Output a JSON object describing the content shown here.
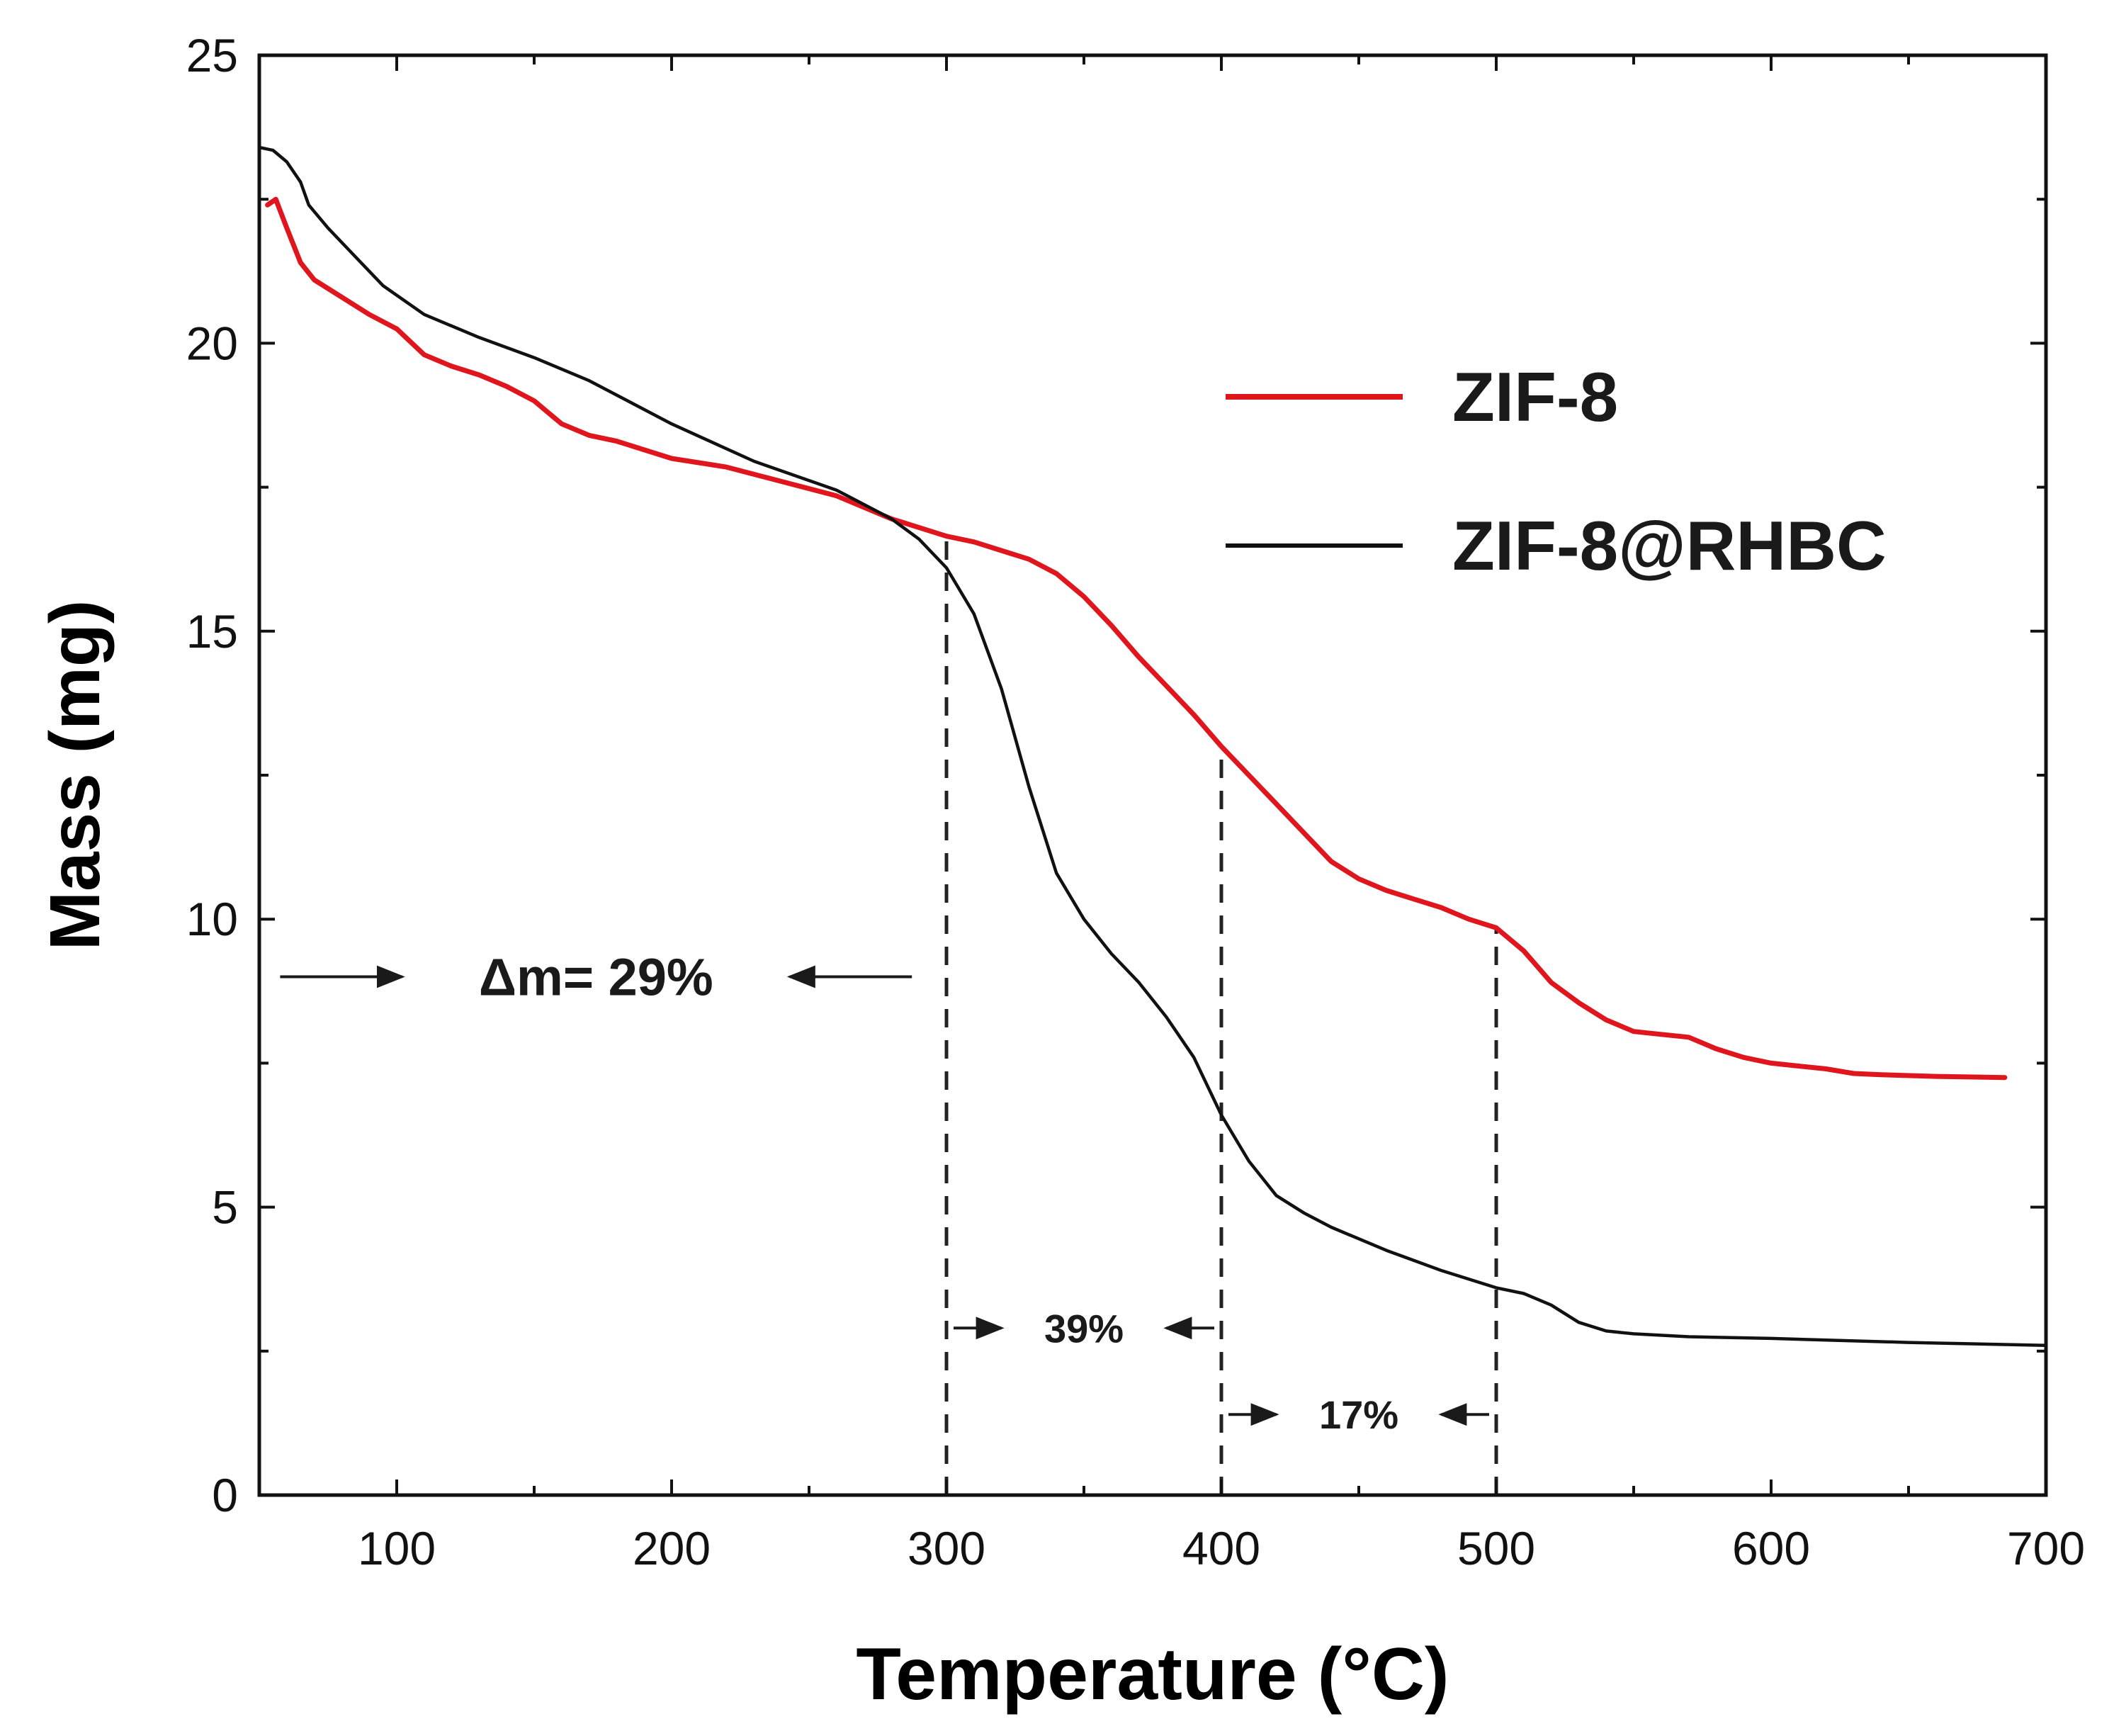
{
  "chart_data": {
    "type": "line",
    "xlabel": "Temperature (°C)",
    "ylabel": "Mass (mg)",
    "xlim": [
      50,
      700
    ],
    "ylim": [
      0,
      25
    ],
    "x_ticks": [
      100,
      200,
      300,
      400,
      500,
      600,
      700
    ],
    "y_ticks": [
      0,
      5,
      10,
      15,
      20,
      25
    ],
    "legend_position": "top-right",
    "series": [
      {
        "name": "ZIF-8",
        "color": "#e0161e",
        "x": [
          53,
          56,
          60,
          65,
          70,
          80,
          90,
          100,
          110,
          120,
          130,
          140,
          150,
          160,
          170,
          180,
          200,
          220,
          240,
          260,
          280,
          300,
          310,
          320,
          330,
          340,
          350,
          360,
          370,
          380,
          390,
          400,
          410,
          420,
          430,
          440,
          450,
          460,
          470,
          480,
          490,
          500,
          510,
          520,
          530,
          540,
          550,
          560,
          570,
          580,
          590,
          600,
          610,
          620,
          630,
          640,
          660,
          685
        ],
        "y": [
          22.4,
          22.5,
          22.0,
          21.4,
          21.1,
          20.8,
          20.5,
          20.25,
          19.8,
          19.6,
          19.45,
          19.25,
          19.0,
          18.6,
          18.4,
          18.3,
          18.0,
          17.85,
          17.6,
          17.35,
          16.95,
          16.65,
          16.55,
          16.4,
          16.25,
          16.0,
          15.6,
          15.1,
          14.55,
          14.05,
          13.55,
          13.0,
          12.5,
          12.0,
          11.5,
          11.0,
          10.7,
          10.5,
          10.35,
          10.2,
          10.0,
          9.85,
          9.45,
          8.9,
          8.55,
          8.25,
          8.05,
          8.0,
          7.95,
          7.75,
          7.6,
          7.5,
          7.45,
          7.4,
          7.32,
          7.3,
          7.27,
          7.25
        ]
      },
      {
        "name": "ZIF-8@RHBC",
        "color": "#111111",
        "x": [
          50,
          55,
          60,
          65,
          68,
          75,
          85,
          95,
          110,
          130,
          150,
          170,
          200,
          230,
          260,
          280,
          290,
          300,
          310,
          320,
          330,
          340,
          350,
          360,
          370,
          380,
          390,
          400,
          410,
          420,
          430,
          440,
          460,
          480,
          500,
          510,
          520,
          530,
          540,
          550,
          570,
          600,
          650,
          700
        ],
        "y": [
          23.4,
          23.35,
          23.15,
          22.8,
          22.4,
          22.0,
          21.5,
          21.0,
          20.5,
          20.1,
          19.75,
          19.35,
          18.6,
          17.95,
          17.45,
          16.95,
          16.6,
          16.1,
          15.3,
          14.0,
          12.3,
          10.8,
          10.0,
          9.4,
          8.9,
          8.3,
          7.6,
          6.6,
          5.8,
          5.2,
          4.9,
          4.65,
          4.25,
          3.9,
          3.6,
          3.5,
          3.3,
          3.0,
          2.85,
          2.8,
          2.75,
          2.72,
          2.65,
          2.6
        ]
      }
    ],
    "reference_lines": [
      {
        "x": 300,
        "y_from": 0,
        "y_to": 16.65
      },
      {
        "x": 400,
        "y_from": 0,
        "y_to": 13.0
      },
      {
        "x": 500,
        "y_from": 0,
        "y_to": 9.85
      }
    ],
    "annotations": [
      {
        "text": "Δm= 29%",
        "from_x": 55,
        "to_x": 290,
        "y": 9.0,
        "size": "large"
      },
      {
        "text": "39%",
        "from_x": 300,
        "to_x": 400,
        "y": 2.9,
        "size": "small"
      },
      {
        "text": "17%",
        "from_x": 400,
        "to_x": 500,
        "y": 1.4,
        "size": "small"
      }
    ]
  }
}
